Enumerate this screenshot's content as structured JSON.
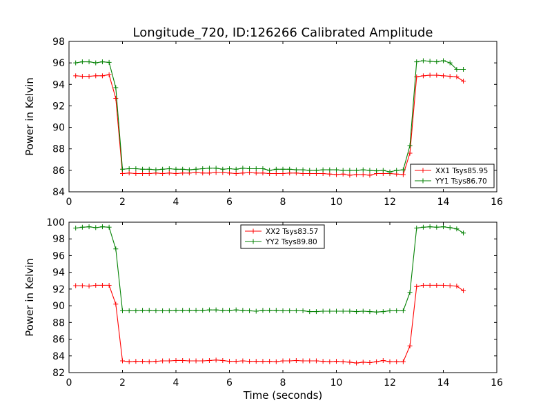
{
  "figure": {
    "title": "Longitude_720, ID:126266 Calibrated Amplitude"
  },
  "chart_data": [
    {
      "type": "line",
      "ylabel": "Power in Kelvin",
      "xlabel": "",
      "xlim": [
        0,
        16
      ],
      "ylim": [
        84,
        98
      ],
      "xticks": [
        0,
        2,
        4,
        6,
        8,
        10,
        12,
        14,
        16
      ],
      "yticks": [
        84,
        86,
        88,
        90,
        92,
        94,
        96,
        98
      ],
      "legend_position": "lower-right",
      "series": [
        {
          "name": "XX1 Tsys85.95",
          "color": "#ff0000",
          "marker": "plus",
          "x": [
            0.25,
            0.5,
            0.75,
            1.0,
            1.25,
            1.5,
            1.75,
            2.0,
            2.25,
            2.5,
            2.75,
            3.0,
            3.25,
            3.5,
            3.75,
            4.0,
            4.25,
            4.5,
            4.75,
            5.0,
            5.25,
            5.5,
            5.75,
            6.0,
            6.25,
            6.5,
            6.75,
            7.0,
            7.25,
            7.5,
            7.75,
            8.0,
            8.25,
            8.5,
            8.75,
            9.0,
            9.25,
            9.5,
            9.75,
            10.0,
            10.25,
            10.5,
            10.75,
            11.0,
            11.25,
            11.5,
            11.75,
            12.0,
            12.25,
            12.5,
            12.75,
            13.0,
            13.25,
            13.5,
            13.75,
            14.0,
            14.25,
            14.5,
            14.75
          ],
          "y": [
            94.8,
            94.75,
            94.75,
            94.8,
            94.8,
            94.9,
            92.7,
            85.7,
            85.75,
            85.7,
            85.7,
            85.7,
            85.75,
            85.7,
            85.75,
            85.7,
            85.75,
            85.75,
            85.8,
            85.75,
            85.75,
            85.8,
            85.8,
            85.75,
            85.7,
            85.75,
            85.8,
            85.75,
            85.75,
            85.7,
            85.7,
            85.7,
            85.75,
            85.75,
            85.7,
            85.7,
            85.7,
            85.7,
            85.65,
            85.6,
            85.65,
            85.55,
            85.6,
            85.6,
            85.55,
            85.7,
            85.7,
            85.7,
            85.65,
            85.6,
            87.6,
            94.7,
            94.8,
            94.85,
            94.85,
            94.8,
            94.75,
            94.7,
            94.3
          ]
        },
        {
          "name": "YY1 Tsys86.70",
          "color": "#008000",
          "marker": "plus",
          "x": [
            0.25,
            0.5,
            0.75,
            1.0,
            1.25,
            1.5,
            1.75,
            2.0,
            2.25,
            2.5,
            2.75,
            3.0,
            3.25,
            3.5,
            3.75,
            4.0,
            4.25,
            4.5,
            4.75,
            5.0,
            5.25,
            5.5,
            5.75,
            6.0,
            6.25,
            6.5,
            6.75,
            7.0,
            7.25,
            7.5,
            7.75,
            8.0,
            8.25,
            8.5,
            8.75,
            9.0,
            9.25,
            9.5,
            9.75,
            10.0,
            10.25,
            10.5,
            10.75,
            11.0,
            11.25,
            11.5,
            11.75,
            12.0,
            12.25,
            12.5,
            12.75,
            13.0,
            13.25,
            13.5,
            13.75,
            14.0,
            14.25,
            14.5,
            14.75
          ],
          "y": [
            96.0,
            96.1,
            96.1,
            96.0,
            96.1,
            96.05,
            93.7,
            86.1,
            86.15,
            86.15,
            86.1,
            86.1,
            86.05,
            86.1,
            86.15,
            86.1,
            86.1,
            86.05,
            86.1,
            86.15,
            86.2,
            86.2,
            86.1,
            86.15,
            86.1,
            86.2,
            86.15,
            86.15,
            86.15,
            86.0,
            86.1,
            86.1,
            86.1,
            86.05,
            86.05,
            86.0,
            86.0,
            86.05,
            86.05,
            86.05,
            86.0,
            86.0,
            86.0,
            86.05,
            86.0,
            85.95,
            86.0,
            85.85,
            86.0,
            86.05,
            88.3,
            96.1,
            96.2,
            96.15,
            96.1,
            96.2,
            96.0,
            95.4,
            95.4
          ]
        }
      ]
    },
    {
      "type": "line",
      "ylabel": "Power in Kelvin",
      "xlabel": "Time (seconds)",
      "xlim": [
        0,
        16
      ],
      "ylim": [
        82,
        100
      ],
      "xticks": [
        0,
        2,
        4,
        6,
        8,
        10,
        12,
        14,
        16
      ],
      "yticks": [
        82,
        84,
        86,
        88,
        90,
        92,
        94,
        96,
        98,
        100
      ],
      "legend_position": "upper-center",
      "series": [
        {
          "name": "XX2 Tsys83.57",
          "color": "#ff0000",
          "marker": "plus",
          "x": [
            0.25,
            0.5,
            0.75,
            1.0,
            1.25,
            1.5,
            1.75,
            2.0,
            2.25,
            2.5,
            2.75,
            3.0,
            3.25,
            3.5,
            3.75,
            4.0,
            4.25,
            4.5,
            4.75,
            5.0,
            5.25,
            5.5,
            5.75,
            6.0,
            6.25,
            6.5,
            6.75,
            7.0,
            7.25,
            7.5,
            7.75,
            8.0,
            8.25,
            8.5,
            8.75,
            9.0,
            9.25,
            9.5,
            9.75,
            10.0,
            10.25,
            10.5,
            10.75,
            11.0,
            11.25,
            11.5,
            11.75,
            12.0,
            12.25,
            12.5,
            12.75,
            13.0,
            13.25,
            13.5,
            13.75,
            14.0,
            14.25,
            14.5,
            14.75
          ],
          "y": [
            92.4,
            92.4,
            92.35,
            92.45,
            92.45,
            92.45,
            90.2,
            83.4,
            83.3,
            83.35,
            83.35,
            83.3,
            83.35,
            83.4,
            83.4,
            83.45,
            83.45,
            83.4,
            83.4,
            83.4,
            83.45,
            83.5,
            83.45,
            83.35,
            83.35,
            83.4,
            83.35,
            83.35,
            83.35,
            83.35,
            83.3,
            83.4,
            83.4,
            83.45,
            83.4,
            83.4,
            83.4,
            83.35,
            83.3,
            83.35,
            83.3,
            83.25,
            83.15,
            83.25,
            83.2,
            83.3,
            83.45,
            83.3,
            83.3,
            83.3,
            85.2,
            92.3,
            92.45,
            92.45,
            92.45,
            92.45,
            92.4,
            92.35,
            91.8
          ]
        },
        {
          "name": "YY2 Tsys89.80",
          "color": "#008000",
          "marker": "plus",
          "x": [
            0.25,
            0.5,
            0.75,
            1.0,
            1.25,
            1.5,
            1.75,
            2.0,
            2.25,
            2.5,
            2.75,
            3.0,
            3.25,
            3.5,
            3.75,
            4.0,
            4.25,
            4.5,
            4.75,
            5.0,
            5.25,
            5.5,
            5.75,
            6.0,
            6.25,
            6.5,
            6.75,
            7.0,
            7.25,
            7.5,
            7.75,
            8.0,
            8.25,
            8.5,
            8.75,
            9.0,
            9.25,
            9.5,
            9.75,
            10.0,
            10.25,
            10.5,
            10.75,
            11.0,
            11.25,
            11.5,
            11.75,
            12.0,
            12.25,
            12.5,
            12.75,
            13.0,
            13.25,
            13.5,
            13.75,
            14.0,
            14.25,
            14.5,
            14.75
          ],
          "y": [
            99.3,
            99.4,
            99.45,
            99.35,
            99.45,
            99.4,
            96.8,
            89.4,
            89.4,
            89.4,
            89.45,
            89.45,
            89.4,
            89.4,
            89.4,
            89.45,
            89.45,
            89.45,
            89.45,
            89.45,
            89.5,
            89.5,
            89.45,
            89.45,
            89.5,
            89.45,
            89.4,
            89.35,
            89.45,
            89.45,
            89.45,
            89.4,
            89.4,
            89.4,
            89.4,
            89.3,
            89.3,
            89.35,
            89.35,
            89.35,
            89.35,
            89.35,
            89.3,
            89.35,
            89.3,
            89.25,
            89.3,
            89.4,
            89.4,
            89.4,
            91.6,
            99.3,
            99.4,
            99.45,
            99.4,
            99.45,
            99.35,
            99.2,
            98.7
          ]
        }
      ]
    }
  ]
}
